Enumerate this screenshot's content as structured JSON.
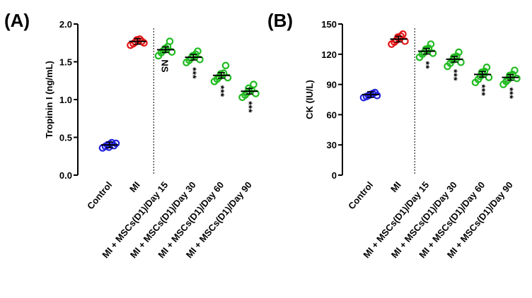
{
  "chart_data": [
    {
      "panel": "(A)",
      "type": "scatter",
      "ylabel": "Tropinin I (ng/mL)",
      "ylim": [
        0,
        2.0
      ],
      "yticks": [
        "0.0",
        "0.5",
        "1.0",
        "1.5",
        "2.0"
      ],
      "ytick_values": [
        0,
        0.5,
        1.0,
        1.5,
        2.0
      ],
      "categories": [
        "Control",
        "MI",
        "MI + MSCs(D1)/Day 15",
        "MI + MSCs(D1)/Day 30",
        "MI + MSCs(D1)/Day 60",
        "MI + MSCs(D1)/Day 90"
      ],
      "colors": [
        "#2222dd",
        "#e01515",
        "#22bb22",
        "#22bb22",
        "#22bb22",
        "#22bb22"
      ],
      "means": [
        0.4,
        1.77,
        1.66,
        1.56,
        1.32,
        1.11
      ],
      "points": [
        [
          0.36,
          0.38,
          0.4,
          0.41,
          0.43,
          0.39,
          0.42,
          0.37
        ],
        [
          1.72,
          1.74,
          1.76,
          1.78,
          1.8,
          1.77,
          1.75,
          1.79
        ],
        [
          1.58,
          1.62,
          1.65,
          1.68,
          1.7,
          1.77,
          1.63,
          1.66
        ],
        [
          1.49,
          1.52,
          1.55,
          1.57,
          1.6,
          1.64,
          1.53,
          1.58
        ],
        [
          1.24,
          1.27,
          1.3,
          1.33,
          1.35,
          1.45,
          1.29,
          1.34
        ],
        [
          1.03,
          1.06,
          1.09,
          1.11,
          1.13,
          1.2,
          1.08,
          1.15
        ]
      ],
      "annotations": [
        "",
        "",
        "NS",
        "***",
        "***",
        "***"
      ],
      "divider_after_index": 1
    },
    {
      "panel": "(B)",
      "type": "scatter",
      "ylabel": "CK (IU/L)",
      "ylim": [
        0,
        150
      ],
      "yticks": [
        "0",
        "30",
        "60",
        "90",
        "120",
        "150"
      ],
      "ytick_values": [
        0,
        30,
        60,
        90,
        120,
        150
      ],
      "categories": [
        "Control",
        "MI",
        "MI + MSCs(D1)/Day 15",
        "MI + MSCs(D1)/Day 30",
        "MI + MSCs(D1)/Day 60",
        "MI + MSCs(D1)/Day 90"
      ],
      "colors": [
        "#2222dd",
        "#e01515",
        "#22bb22",
        "#22bb22",
        "#22bb22",
        "#22bb22"
      ],
      "means": [
        80,
        135,
        123,
        115,
        100,
        97
      ],
      "points": [
        [
          77,
          78,
          79,
          80,
          81,
          82,
          79,
          80
        ],
        [
          130,
          132,
          134,
          136,
          138,
          140,
          133,
          137
        ],
        [
          117,
          120,
          122,
          124,
          126,
          130,
          121,
          125
        ],
        [
          108,
          111,
          114,
          116,
          118,
          122,
          112,
          117
        ],
        [
          92,
          95,
          98,
          101,
          103,
          107,
          97,
          102
        ],
        [
          90,
          93,
          95,
          98,
          100,
          104,
          96,
          99
        ]
      ],
      "annotations": [
        "",
        "",
        "**",
        "***",
        "***",
        "***"
      ],
      "divider_after_index": 1
    }
  ]
}
